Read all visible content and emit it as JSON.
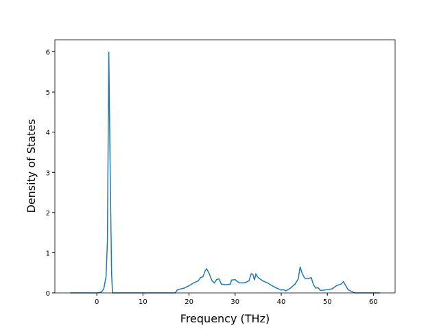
{
  "chart_data": {
    "type": "line",
    "x_label": "Frequency (THz)",
    "y_label": "Density of States",
    "x": [
      -5.8,
      0,
      1,
      1.5,
      2,
      2.3,
      2.6,
      2.9,
      3.2,
      3.4,
      17,
      17.5,
      19,
      20,
      21,
      22,
      22.5,
      23,
      23.5,
      23.8,
      24.3,
      25,
      25.5,
      26,
      26.5,
      27,
      28,
      29,
      29.2,
      30,
      30.5,
      31,
      32,
      33,
      33.5,
      33.9,
      34.2,
      34.5,
      35,
      36,
      37,
      38,
      39,
      40,
      40.5,
      41,
      42,
      43,
      43.7,
      44.1,
      44.5,
      45,
      45.5,
      46,
      46.5,
      47,
      47.5,
      48,
      48.5,
      50,
      51,
      52,
      53,
      53.5,
      54,
      54.5,
      55,
      56,
      61.4
    ],
    "series": [
      {
        "color": "#1f77b4",
        "values": [
          0,
          0,
          0.02,
          0.1,
          0.4,
          1.3,
          6.0,
          3.0,
          0.5,
          0,
          0,
          0.08,
          0.12,
          0.18,
          0.25,
          0.3,
          0.38,
          0.4,
          0.55,
          0.6,
          0.5,
          0.3,
          0.25,
          0.33,
          0.35,
          0.22,
          0.2,
          0.22,
          0.32,
          0.33,
          0.28,
          0.25,
          0.25,
          0.3,
          0.48,
          0.45,
          0.32,
          0.47,
          0.38,
          0.3,
          0.25,
          0.18,
          0.12,
          0.07,
          0.08,
          0.05,
          0.12,
          0.22,
          0.35,
          0.65,
          0.5,
          0.38,
          0.35,
          0.36,
          0.38,
          0.2,
          0.12,
          0.13,
          0.06,
          0.08,
          0.1,
          0.18,
          0.22,
          0.28,
          0.18,
          0.08,
          0.05,
          0,
          0
        ]
      }
    ],
    "xlim": [
      -9.1,
      64.7
    ],
    "ylim": [
      0,
      6.3
    ],
    "xticks": [
      0,
      10,
      20,
      30,
      40,
      50,
      60
    ],
    "yticks": [
      0,
      1,
      2,
      3,
      4,
      5,
      6
    ]
  }
}
